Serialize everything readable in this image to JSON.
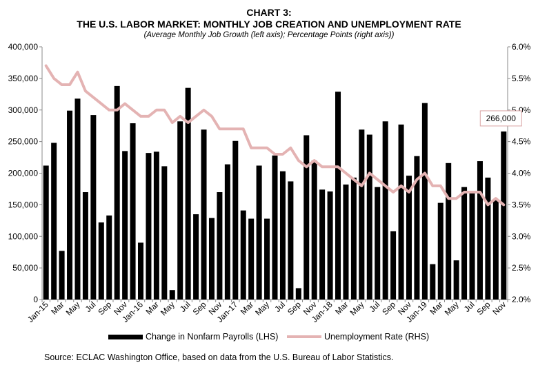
{
  "titles": {
    "line1": "CHART 3:",
    "line2": "THE U.S. LABOR MARKET: MONTHLY JOB CREATION AND UNEMPLOYMENT RATE",
    "line3": "(Average Monthly Job Growth (left axis); Percentage Points (right axis))"
  },
  "source": "Source: ECLAC Washington Office, based on data from the U.S. Bureau of Labor Statistics.",
  "colors": {
    "bars": "#000000",
    "line": "#e4b3b3",
    "callout_border": "#d9a3a3"
  },
  "chart_data": {
    "type": "bar",
    "categories": [
      "Jan-15",
      "Feb",
      "Mar",
      "Apr",
      "May",
      "Jun",
      "Jul",
      "Aug",
      "Sep",
      "Oct",
      "Nov",
      "Dec",
      "Jan-16",
      "Feb",
      "Mar",
      "Apr",
      "May",
      "Jun",
      "Jul",
      "Aug",
      "Sep",
      "Oct",
      "Nov",
      "Dec",
      "Jan-17",
      "Feb",
      "Mar",
      "Apr",
      "May",
      "Jun",
      "Jul",
      "Aug",
      "Sep",
      "Oct",
      "Nov",
      "Dec",
      "Jan-18",
      "Feb",
      "Mar",
      "Apr",
      "May",
      "Jun",
      "Jul",
      "Aug",
      "Sep",
      "Oct",
      "Nov",
      "Dec",
      "Jan-19",
      "Feb",
      "Mar",
      "Apr",
      "May",
      "Jun",
      "Jul",
      "Aug",
      "Sep",
      "Oct",
      "Nov"
    ],
    "x_tick_labels": [
      "Jan-15",
      "Mar",
      "May",
      "Jul",
      "Sep",
      "Nov",
      "Jan-16",
      "Mar",
      "May",
      "Jul",
      "Sep",
      "Nov",
      "Jan-17",
      "Mar",
      "May",
      "Jul",
      "Sep",
      "Nov",
      "Jan-18",
      "Mar",
      "May",
      "Jul",
      "Sep",
      "Nov",
      "Jan-19",
      "Mar",
      "May",
      "Jul",
      "Sep",
      "Nov"
    ],
    "series": [
      {
        "name": "Change in Nonfarm Payrolls (LHS)",
        "type": "bar",
        "axis": "left",
        "values": [
          212000,
          248000,
          77000,
          299000,
          318000,
          170000,
          292000,
          122000,
          133000,
          338000,
          235000,
          279000,
          90000,
          232000,
          234000,
          211000,
          15000,
          282000,
          335000,
          135000,
          269000,
          129000,
          170000,
          214000,
          251000,
          141000,
          128000,
          212000,
          128000,
          228000,
          203000,
          187000,
          18000,
          260000,
          220000,
          174000,
          171000,
          329000,
          182000,
          193000,
          269000,
          261000,
          178000,
          282000,
          108000,
          277000,
          196000,
          227000,
          311000,
          56000,
          153000,
          216000,
          62000,
          178000,
          169000,
          219000,
          193000,
          158000,
          266000
        ]
      },
      {
        "name": "Unemployment Rate (RHS)",
        "type": "line",
        "axis": "right",
        "values": [
          5.7,
          5.5,
          5.4,
          5.4,
          5.6,
          5.3,
          5.2,
          5.1,
          5.0,
          5.0,
          5.1,
          5.0,
          4.9,
          4.9,
          5.0,
          5.0,
          4.8,
          4.9,
          4.8,
          4.9,
          5.0,
          4.9,
          4.7,
          4.7,
          4.7,
          4.7,
          4.4,
          4.4,
          4.4,
          4.3,
          4.3,
          4.4,
          4.2,
          4.1,
          4.2,
          4.1,
          4.1,
          4.1,
          4.0,
          3.9,
          3.8,
          4.0,
          3.9,
          3.8,
          3.7,
          3.8,
          3.7,
          3.9,
          4.0,
          3.8,
          3.8,
          3.6,
          3.6,
          3.7,
          3.7,
          3.7,
          3.5,
          3.6,
          3.5
        ]
      }
    ],
    "y_left": {
      "min": 0,
      "max": 400000,
      "step": 50000,
      "tick_labels": [
        "0",
        "50,000",
        "100,000",
        "150,000",
        "200,000",
        "250,000",
        "300,000",
        "350,000",
        "400,000"
      ]
    },
    "y_right": {
      "min": 2.0,
      "max": 6.0,
      "step": 0.5,
      "tick_labels": [
        "2.0%",
        "2.5%",
        "3.0%",
        "3.5%",
        "4.0%",
        "4.5%",
        "5.0%",
        "5.5%",
        "6.0%"
      ]
    },
    "annotation": {
      "label": "266,000",
      "category_index": 58
    },
    "grid": false,
    "legend_position": "bottom"
  }
}
